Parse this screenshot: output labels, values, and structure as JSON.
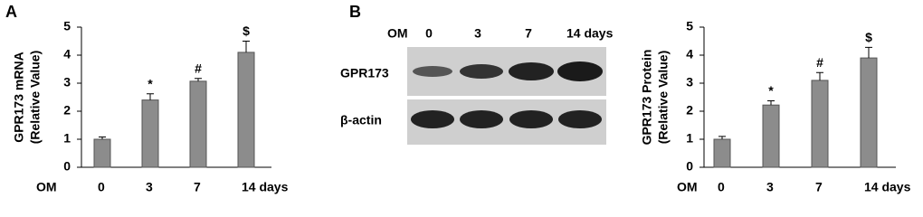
{
  "panels": [
    "A",
    "B"
  ],
  "blot": {
    "header": [
      "OM",
      "0",
      "3",
      "7",
      "14 days"
    ],
    "rows": [
      "GPR173",
      "β-actin"
    ]
  },
  "chart_data": [
    {
      "type": "bar",
      "ylabel": [
        "GPR173 mRNA",
        "(Relative Value)"
      ],
      "xlabel": "OM",
      "categories": [
        "0",
        "3",
        "7",
        "14 days"
      ],
      "values": [
        1.0,
        2.4,
        3.07,
        4.1
      ],
      "errors": [
        0.08,
        0.22,
        0.1,
        0.4
      ],
      "annotations": [
        null,
        "*",
        "#",
        "$"
      ],
      "color": "#8c8c8c",
      "ylim": [
        0,
        5
      ],
      "yticks": [
        0,
        1,
        2,
        3,
        4,
        5
      ]
    },
    {
      "type": "bar",
      "ylabel": [
        "GPR173 Protein",
        "(Relative Value)"
      ],
      "xlabel": "OM",
      "categories": [
        "0",
        "3",
        "7",
        "14 days"
      ],
      "values": [
        1.0,
        2.22,
        3.1,
        3.9
      ],
      "errors": [
        0.1,
        0.15,
        0.28,
        0.38
      ],
      "annotations": [
        null,
        "*",
        "#",
        "$"
      ],
      "color": "#8c8c8c",
      "ylim": [
        0,
        5
      ],
      "yticks": [
        0,
        1,
        2,
        3,
        4,
        5
      ]
    }
  ]
}
